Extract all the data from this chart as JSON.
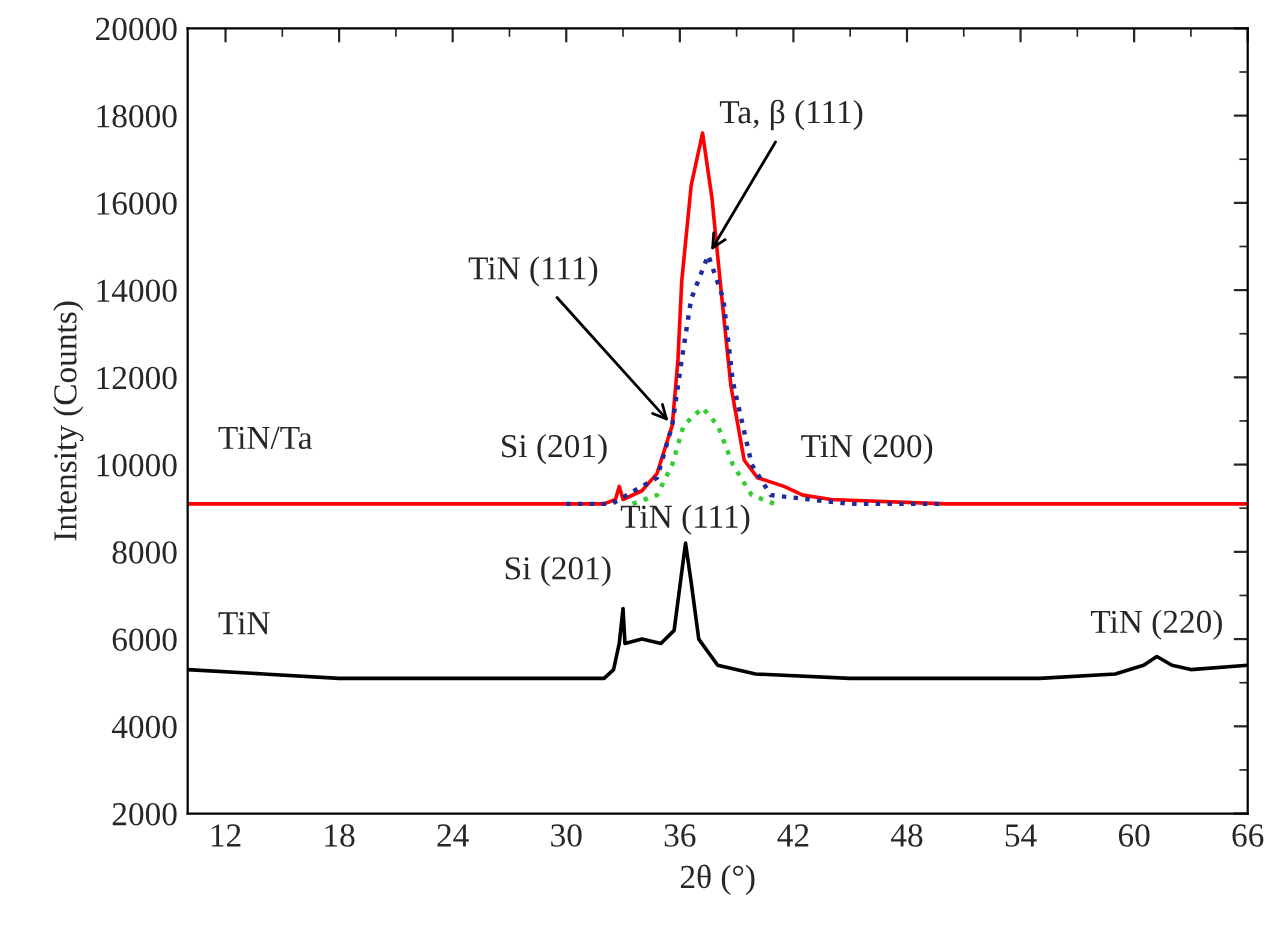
{
  "chart_data": {
    "type": "line",
    "xlabel": "2θ (°)",
    "ylabel": "Intensity (Counts)",
    "xlim": [
      10,
      66
    ],
    "xticks": [
      12,
      18,
      24,
      30,
      36,
      42,
      48,
      54,
      60,
      66
    ],
    "ylim": [
      2000,
      20000
    ],
    "yticks": [
      2000,
      4000,
      6000,
      8000,
      10000,
      12000,
      14000,
      16000,
      18000,
      20000
    ],
    "grid": false,
    "legend": false,
    "marker": "none",
    "series": [
      {
        "name": "TiN/Ta",
        "color": "#ff0000",
        "line_style": "solid",
        "x": [
          10,
          14,
          18,
          24,
          30,
          32,
          32.6,
          32.8,
          33.0,
          34.0,
          34.8,
          35.6,
          35.9,
          36.1,
          36.6,
          37.2,
          37.7,
          38.2,
          38.7,
          39.4,
          40.1,
          41.5,
          42.5,
          44,
          50,
          56,
          62,
          66
        ],
        "values": [
          9100,
          9100,
          9100,
          9100,
          9100,
          9100,
          9200,
          9500,
          9200,
          9400,
          9800,
          10900,
          12400,
          14200,
          16400,
          17600,
          16100,
          13900,
          11800,
          10100,
          9700,
          9500,
          9300,
          9200,
          9100,
          9100,
          9100,
          9100
        ]
      },
      {
        "color": "#1f2a9c",
        "line_style": "dotted",
        "x": [
          30,
          32.4,
          34.8,
          35.6,
          36.1,
          36.6,
          37.5,
          38.3,
          38.8,
          39.8,
          40.8,
          45,
          50
        ],
        "values": [
          9100,
          9100,
          9700,
          10900,
          12400,
          13800,
          14800,
          13800,
          11900,
          10000,
          9300,
          9100,
          9100
        ]
      },
      {
        "color": "#33cc33",
        "line_style": "dotted",
        "x": [
          33.5,
          34.8,
          35.6,
          36.2,
          37.2,
          38.0,
          38.8,
          39.8,
          41
        ],
        "values": [
          9100,
          9300,
          10000,
          10900,
          11300,
          10900,
          10000,
          9300,
          9100
        ]
      },
      {
        "name": "TiN",
        "color": "#000000",
        "line_style": "solid",
        "x": [
          10,
          14,
          18,
          24,
          30,
          32,
          32.5,
          32.8,
          33.0,
          33.1,
          34,
          35,
          35.7,
          36.0,
          36.3,
          36.6,
          37,
          38,
          40,
          45,
          55,
          59,
          60.5,
          61.2,
          62,
          63,
          66
        ],
        "values": [
          5300,
          5200,
          5100,
          5100,
          5100,
          5100,
          5300,
          5900,
          6700,
          5900,
          6000,
          5900,
          6200,
          7200,
          8200,
          7300,
          6000,
          5400,
          5200,
          5100,
          5100,
          5200,
          5400,
          5600,
          5400,
          5300,
          5400
        ]
      }
    ],
    "annotations": [
      {
        "text": "Ta, β (111)",
        "x": 37.5,
        "y": 14800
      },
      {
        "text": "TiN (111)",
        "x": 35.6,
        "y": 10900
      },
      {
        "text": "Si (201)",
        "x": 32.8,
        "y": 9500
      },
      {
        "text": "TiN (200)",
        "x": 41.5,
        "y": 9500
      },
      {
        "text": "TiN (111)",
        "x": 36.3,
        "y": 8200
      },
      {
        "text": "Si (201)",
        "x": 33.0,
        "y": 6700
      },
      {
        "text": "TiN (220)",
        "x": 61.2,
        "y": 5600
      }
    ]
  }
}
